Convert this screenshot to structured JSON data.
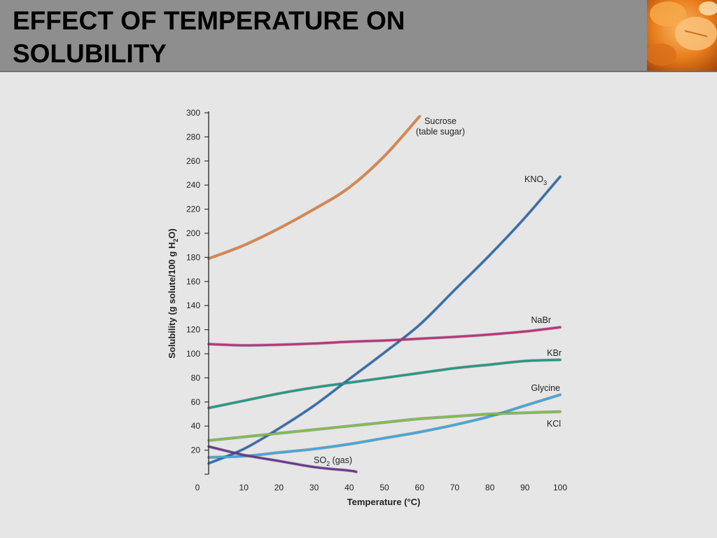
{
  "slide": {
    "title_line1": "EFFECT OF TEMPERATURE ON",
    "title_line2": "SOLUBILITY",
    "header_bg": "#8e8e8e",
    "body_bg": "#e6e6e6",
    "decor_image": "orange pills photo"
  },
  "chart_data": {
    "type": "line",
    "title": "",
    "xlabel": "Temperature (°C)",
    "ylabel": "Solubility (g solute/100 g H2O)",
    "xlim": [
      0,
      100
    ],
    "ylim": [
      0,
      300
    ],
    "xticks": [
      0,
      10,
      20,
      30,
      40,
      50,
      60,
      70,
      80,
      90,
      100
    ],
    "yticks": [
      20,
      40,
      60,
      80,
      100,
      120,
      140,
      160,
      180,
      200,
      220,
      240,
      260,
      280,
      300
    ],
    "grid": false,
    "series": [
      {
        "name": "Sucrose (table sugar)",
        "label_lines": [
          "Sucrose",
          "(table sugar)"
        ],
        "color": "#e8813a",
        "x": [
          0,
          10,
          20,
          30,
          40,
          50,
          60
        ],
        "y": [
          179,
          190,
          204,
          220,
          238,
          264,
          297
        ]
      },
      {
        "name": "KNO3",
        "label_main": "KNO",
        "label_sub": "3",
        "color": "#2f6db3",
        "x": [
          0,
          10,
          20,
          30,
          40,
          50,
          60,
          70,
          80,
          90,
          100
        ],
        "y": [
          9,
          21,
          38,
          57,
          79,
          101,
          124,
          153,
          182,
          213,
          247
        ]
      },
      {
        "name": "NaBr",
        "label": "NaBr",
        "color": "#c2307e",
        "x": [
          0,
          10,
          20,
          30,
          40,
          50,
          60,
          70,
          80,
          90,
          100
        ],
        "y": [
          108,
          107,
          107.5,
          108.5,
          110,
          111,
          112.5,
          114,
          116,
          118.5,
          122
        ]
      },
      {
        "name": "KBr",
        "label": "KBr",
        "color": "#1f9a86",
        "x": [
          0,
          10,
          20,
          30,
          40,
          50,
          60,
          70,
          80,
          90,
          100
        ],
        "y": [
          55,
          61,
          67,
          72,
          76,
          80,
          84,
          88,
          91,
          94,
          95
        ]
      },
      {
        "name": "Glycine",
        "label": "Glycine",
        "color": "#3fa8e0",
        "x": [
          0,
          10,
          20,
          30,
          40,
          50,
          60,
          70,
          80,
          90,
          100
        ],
        "y": [
          14,
          15,
          18,
          21,
          25,
          30,
          35,
          41,
          48,
          57,
          66
        ]
      },
      {
        "name": "KCl",
        "label": "KCl",
        "color": "#7fbf4d",
        "x": [
          0,
          10,
          20,
          30,
          40,
          50,
          60,
          70,
          80,
          90,
          100
        ],
        "y": [
          28,
          31,
          34,
          37,
          40,
          43,
          46,
          48,
          50,
          51,
          52
        ]
      },
      {
        "name": "SO2 (gas)",
        "label_main": "SO",
        "label_sub": "2",
        "label_tail": " (gas)",
        "color": "#6a3793",
        "x": [
          0,
          10,
          20,
          30,
          40,
          42
        ],
        "y": [
          23,
          16,
          11,
          6,
          3,
          2
        ]
      }
    ]
  }
}
